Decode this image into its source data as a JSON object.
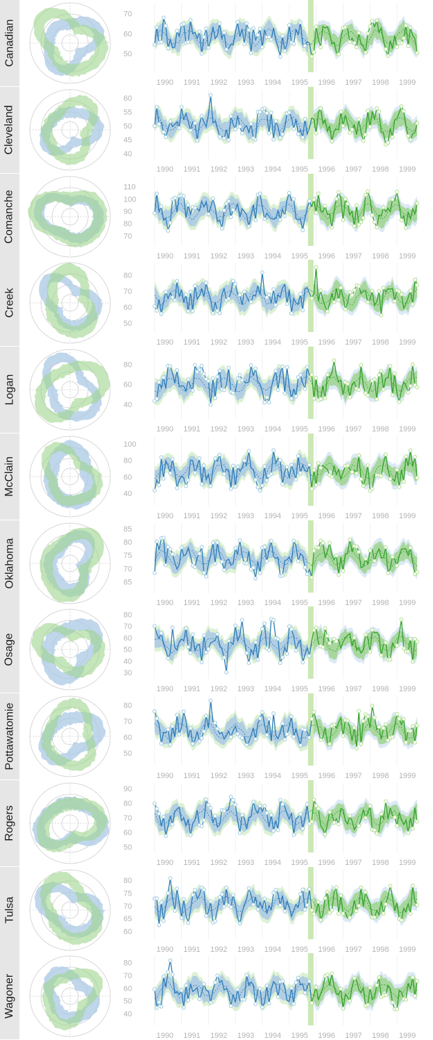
{
  "colors": {
    "blue_line": "#2c7bb6",
    "blue_band": "#a9c8e4",
    "blue_band_light": "#d3e3f2",
    "green_line": "#33a02c",
    "green_band": "#9fd38e",
    "green_band_light": "#d5edc9",
    "marker_blue": "#9ecae1",
    "marker_green": "#b2df8a",
    "split_band": "#cce8b5",
    "tick_label": "#b3b3b3",
    "radial_grid": "#cccccc",
    "strip_bg": "#e6e6e6"
  },
  "chart_data": [
    {
      "type": "line",
      "panel": "Canadian",
      "x_ticks": [
        "1990",
        "1991",
        "1992",
        "1993",
        "1994",
        "1995",
        "1996",
        "1997",
        "1998",
        "1999"
      ],
      "y_ticks": [
        50,
        60,
        70
      ],
      "ylim": [
        42,
        74
      ],
      "split_year": 1995.8
    },
    {
      "type": "line",
      "panel": "Cleveland",
      "x_ticks": [
        "1990",
        "1991",
        "1992",
        "1993",
        "1994",
        "1995",
        "1996",
        "1997",
        "1998",
        "1999"
      ],
      "y_ticks": [
        40,
        45,
        50,
        55,
        60
      ],
      "ylim": [
        39,
        62
      ],
      "split_year": 1995.8
    },
    {
      "type": "line",
      "panel": "Comanche",
      "x_ticks": [
        "1990",
        "1991",
        "1992",
        "1993",
        "1994",
        "1995",
        "1996",
        "1997",
        "1998",
        "1999"
      ],
      "y_ticks": [
        70,
        80,
        90,
        100,
        110
      ],
      "ylim": [
        64,
        116
      ],
      "split_year": 1995.8
    },
    {
      "type": "line",
      "panel": "Creek",
      "x_ticks": [
        "1990",
        "1991",
        "1992",
        "1993",
        "1994",
        "1995",
        "1996",
        "1997",
        "1998",
        "1999"
      ],
      "y_ticks": [
        50,
        60,
        70,
        80
      ],
      "ylim": [
        46,
        86
      ],
      "split_year": 1995.8
    },
    {
      "type": "line",
      "panel": "Logan",
      "x_ticks": [
        "1990",
        "1991",
        "1992",
        "1993",
        "1994",
        "1995",
        "1996",
        "1997",
        "1998",
        "1999"
      ],
      "y_ticks": [
        40,
        60,
        80
      ],
      "ylim": [
        28,
        92
      ],
      "split_year": 1995.8
    },
    {
      "type": "line",
      "panel": "McClain",
      "x_ticks": [
        "1990",
        "1991",
        "1992",
        "1993",
        "1994",
        "1995",
        "1996",
        "1997",
        "1998",
        "1999"
      ],
      "y_ticks": [
        40,
        60,
        80,
        100
      ],
      "ylim": [
        28,
        106
      ],
      "split_year": 1995.8
    },
    {
      "type": "line",
      "panel": "Oklahoma",
      "x_ticks": [
        "1990",
        "1991",
        "1992",
        "1993",
        "1994",
        "1995",
        "1996",
        "1997",
        "1998",
        "1999"
      ],
      "y_ticks": [
        65,
        70,
        75,
        80,
        85
      ],
      "ylim": [
        62,
        86
      ],
      "split_year": 1995.8
    },
    {
      "type": "line",
      "panel": "Osage",
      "x_ticks": [
        "1990",
        "1991",
        "1992",
        "1993",
        "1994",
        "1995",
        "1996",
        "1997",
        "1998",
        "1999"
      ],
      "y_ticks": [
        30,
        40,
        50,
        60,
        70,
        80
      ],
      "ylim": [
        27,
        82
      ],
      "split_year": 1995.8
    },
    {
      "type": "line",
      "panel": "Pottawatomie",
      "x_ticks": [
        "1990",
        "1991",
        "1992",
        "1993",
        "1994",
        "1995",
        "1996",
        "1997",
        "1998",
        "1999"
      ],
      "y_ticks": [
        50,
        60,
        70,
        80
      ],
      "ylim": [
        44,
        84
      ],
      "split_year": 1995.8
    },
    {
      "type": "line",
      "panel": "Rogers",
      "x_ticks": [
        "1990",
        "1991",
        "1992",
        "1993",
        "1994",
        "1995",
        "1996",
        "1997",
        "1998",
        "1999"
      ],
      "y_ticks": [
        50,
        60,
        70,
        80,
        90
      ],
      "ylim": [
        48,
        92
      ],
      "split_year": 1995.8
    },
    {
      "type": "line",
      "panel": "Tulsa",
      "x_ticks": [
        "1990",
        "1991",
        "1992",
        "1993",
        "1994",
        "1995",
        "1996",
        "1997",
        "1998",
        "1999"
      ],
      "y_ticks": [
        60,
        65,
        70,
        75,
        80
      ],
      "ylim": [
        58,
        83
      ],
      "split_year": 1995.8
    },
    {
      "type": "line",
      "panel": "Wagoner",
      "x_ticks": [
        "1990",
        "1991",
        "1992",
        "1993",
        "1994",
        "1995",
        "1996",
        "1997",
        "1998",
        "1999"
      ],
      "y_ticks": [
        40,
        50,
        60,
        70,
        80
      ],
      "ylim": [
        33,
        83
      ],
      "split_year": 1995.8
    }
  ]
}
